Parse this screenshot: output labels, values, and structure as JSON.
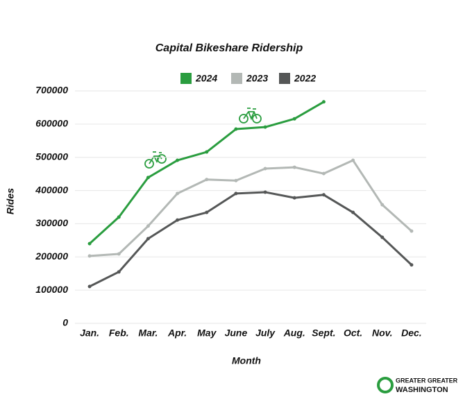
{
  "chart_data": {
    "type": "line",
    "title": "Capital Bikeshare Ridership",
    "x_label": "Month",
    "y_label": "Rides",
    "categories": [
      "Jan.",
      "Feb.",
      "Mar.",
      "Apr.",
      "May",
      "June",
      "July",
      "Aug.",
      "Sept.",
      "Oct.",
      "Nov.",
      "Dec."
    ],
    "series": [
      {
        "name": "2024",
        "color": "#2a9d3f",
        "values": [
          240000,
          320000,
          439000,
          491000,
          516000,
          585000,
          591000,
          616000,
          667000,
          null,
          null,
          null
        ]
      },
      {
        "name": "2023",
        "color": "#b3b8b5",
        "values": [
          203000,
          209000,
          293000,
          391000,
          433000,
          430000,
          466000,
          470000,
          451000,
          491000,
          357000,
          278000
        ]
      },
      {
        "name": "2022",
        "color": "#555757",
        "values": [
          111000,
          155000,
          255000,
          311000,
          334000,
          391000,
          395000,
          378000,
          387000,
          334000,
          259000,
          176000
        ]
      }
    ],
    "ylim": [
      0,
      700000
    ],
    "yticks": [
      0,
      100000,
      200000,
      300000,
      400000,
      500000,
      600000,
      700000
    ],
    "grid": true,
    "legend": "top"
  },
  "logo": {
    "line1": "GREATER GREATER",
    "line2": "WASHINGTON"
  }
}
